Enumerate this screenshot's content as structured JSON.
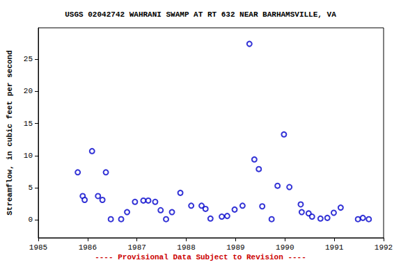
{
  "chart_data": {
    "type": "scatter",
    "title": "USGS 02042742 WAHRANI SWAMP AT RT 632 NEAR BARHAMSVILLE, VA",
    "y_label": "Streamflow, in cubic feet per second",
    "footnote": "---- Provisional Data Subject to Revision ----",
    "x": [
      1985.8,
      1985.9,
      1985.94,
      1986.09,
      1986.21,
      1986.3,
      1986.37,
      1986.47,
      1986.68,
      1986.8,
      1986.96,
      1987.13,
      1987.23,
      1987.37,
      1987.48,
      1987.59,
      1987.71,
      1987.88,
      1988.1,
      1988.31,
      1988.39,
      1988.49,
      1988.72,
      1988.83,
      1988.98,
      1989.14,
      1989.28,
      1989.38,
      1989.47,
      1989.54,
      1989.73,
      1989.85,
      1989.98,
      1990.09,
      1990.32,
      1990.34,
      1990.48,
      1990.55,
      1990.72,
      1990.86,
      1990.99,
      1991.13,
      1991.48,
      1991.58,
      1991.7
    ],
    "values": [
      7.4,
      3.7,
      3.1,
      10.7,
      3.7,
      3.1,
      7.4,
      0.1,
      0.1,
      1.2,
      2.8,
      3.0,
      3.0,
      2.8,
      1.5,
      0.1,
      1.2,
      4.2,
      2.2,
      2.2,
      1.7,
      0.2,
      0.5,
      0.6,
      1.6,
      2.2,
      27.4,
      9.4,
      7.9,
      2.1,
      0.1,
      5.3,
      13.3,
      5.1,
      2.4,
      1.2,
      1.0,
      0.5,
      0.2,
      0.3,
      1.1,
      1.9,
      0.1,
      0.3,
      0.1
    ],
    "color": "#0000cc",
    "marker": "emptyCircle",
    "xlim": [
      1985,
      1992
    ],
    "xticks": [
      1985,
      1986,
      1987,
      1988,
      1989,
      1990,
      1991,
      1992
    ],
    "ylim": [
      -2.8,
      29.9
    ],
    "yticks": [
      0,
      5,
      10,
      15,
      20,
      25
    ],
    "grid": false
  }
}
